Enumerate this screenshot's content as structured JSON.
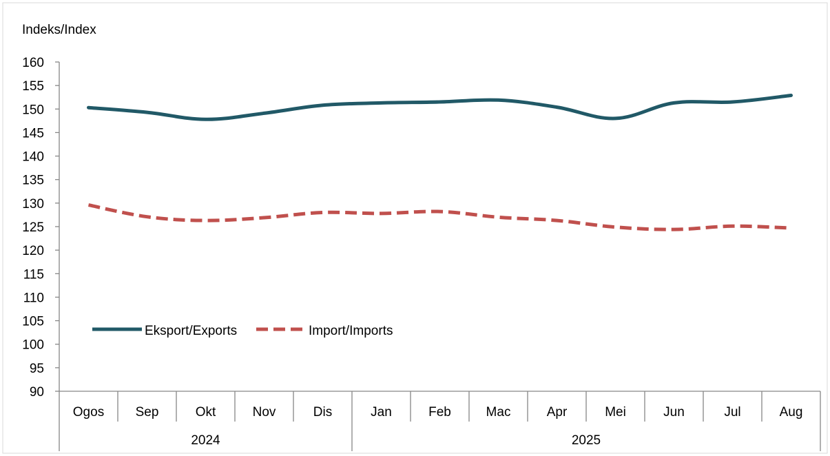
{
  "chart_data": {
    "type": "line",
    "title": "",
    "ylabel": "Indeks/Index",
    "xlabel": "",
    "ylim": [
      90,
      160
    ],
    "yticks": [
      90,
      95,
      100,
      105,
      110,
      115,
      120,
      125,
      130,
      135,
      140,
      145,
      150,
      155,
      160
    ],
    "categories": [
      "Ogos",
      "Sep",
      "Okt",
      "Nov",
      "Dis",
      "Jan",
      "Feb",
      "Mac",
      "Apr",
      "Mei",
      "Jun",
      "Jul",
      "Aug"
    ],
    "year_groups": [
      {
        "label": "2024",
        "span": 5
      },
      {
        "label": "2025",
        "span": 8
      }
    ],
    "series": [
      {
        "name": "Eksport/Exports",
        "color": "#215967",
        "style": "solid",
        "values": [
          150.3,
          149.3,
          147.8,
          149.1,
          150.8,
          151.3,
          151.5,
          151.9,
          150.4,
          148.0,
          151.3,
          151.5,
          152.9
        ]
      },
      {
        "name": "Import/Imports",
        "color": "#C0504D",
        "style": "dashed",
        "values": [
          129.6,
          127.1,
          126.3,
          126.9,
          128.0,
          127.8,
          128.2,
          127.0,
          126.3,
          124.9,
          124.4,
          125.1,
          124.7
        ]
      }
    ],
    "legend_position": "bottom-left",
    "grid": false
  }
}
